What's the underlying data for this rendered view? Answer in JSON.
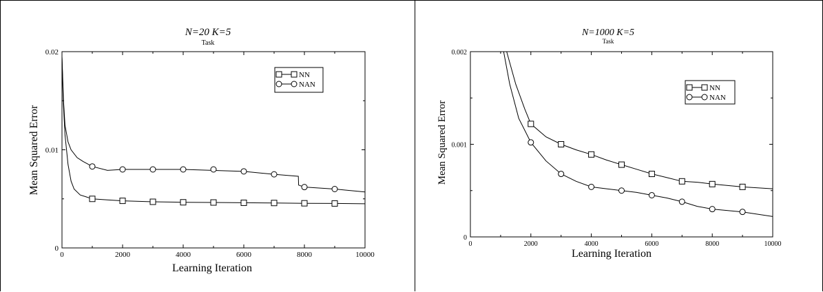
{
  "chart_data": [
    {
      "type": "line",
      "title": "N=20 K=5",
      "subtitle": "Task",
      "xlabel": "Learning Iteration",
      "ylabel": "Mean Squared Error",
      "xlim": [
        0,
        10000
      ],
      "ylim": [
        0,
        0.02
      ],
      "xticks": [
        0,
        2000,
        4000,
        6000,
        8000,
        10000
      ],
      "yticks": [
        0,
        0.01,
        0.02
      ],
      "xtick_labels": [
        "0",
        "2000",
        "4000",
        "6000",
        "8000",
        "10000"
      ],
      "ytick_labels": [
        "0",
        "0.01",
        "0.02"
      ],
      "grid": false,
      "legend_position": "top-right",
      "series": [
        {
          "name": "NN",
          "marker": "square",
          "x": [
            0,
            40,
            100,
            200,
            300,
            400,
            600,
            800,
            1000,
            1500,
            2000,
            3000,
            4000,
            5000,
            6000,
            7000,
            8000,
            9000,
            10000
          ],
          "y": [
            0.0195,
            0.015,
            0.0115,
            0.0085,
            0.0068,
            0.006,
            0.0054,
            0.0052,
            0.005,
            0.0049,
            0.0048,
            0.0047,
            0.00465,
            0.00463,
            0.0046,
            0.00458,
            0.00455,
            0.00453,
            0.0045
          ],
          "marker_x": [
            1000,
            2000,
            3000,
            4000,
            5000,
            6000,
            7000,
            8000,
            9000
          ],
          "marker_y": [
            0.005,
            0.0048,
            0.0047,
            0.00465,
            0.00463,
            0.0046,
            0.00458,
            0.00455,
            0.00453
          ]
        },
        {
          "name": "NAN",
          "marker": "circle",
          "x": [
            0,
            50,
            100,
            200,
            300,
            500,
            700,
            1000,
            1500,
            2000,
            4000,
            6000,
            7000,
            7800,
            7810,
            8000,
            9000,
            10000
          ],
          "y": [
            0.0195,
            0.015,
            0.0125,
            0.0108,
            0.01,
            0.0092,
            0.0088,
            0.0083,
            0.0079,
            0.008,
            0.008,
            0.0078,
            0.0075,
            0.0073,
            0.0064,
            0.0062,
            0.006,
            0.0057
          ],
          "marker_x": [
            1000,
            2000,
            3000,
            4000,
            5000,
            6000,
            7000,
            8000,
            9000
          ],
          "marker_y": [
            0.0083,
            0.008,
            0.008,
            0.008,
            0.008,
            0.0078,
            0.0075,
            0.0062,
            0.006
          ]
        }
      ]
    },
    {
      "type": "line",
      "title": "N=1000 K=5",
      "subtitle": "Task",
      "xlabel": "Learning Iteration",
      "ylabel": "Mean Squared Error",
      "xlim": [
        0,
        10000
      ],
      "ylim": [
        0,
        0.002
      ],
      "xticks": [
        0,
        2000,
        4000,
        6000,
        8000,
        10000
      ],
      "yticks": [
        0,
        0.001,
        0.002
      ],
      "xtick_labels": [
        "0",
        "2000",
        "4000",
        "6000",
        "8000",
        "10000"
      ],
      "ytick_labels": [
        "0",
        "0.001",
        "0.002"
      ],
      "grid": false,
      "legend_position": "top-right",
      "series": [
        {
          "name": "NN",
          "marker": "square",
          "x": [
            1200,
            1500,
            1800,
            2000,
            2500,
            3000,
            3500,
            4000,
            4500,
            5000,
            5500,
            6000,
            6500,
            7000,
            7500,
            8000,
            9000,
            10000
          ],
          "y": [
            0.002,
            0.00165,
            0.00138,
            0.00122,
            0.00108,
            0.001,
            0.00094,
            0.00089,
            0.00083,
            0.00078,
            0.00073,
            0.00068,
            0.00064,
            0.0006,
            0.00059,
            0.00057,
            0.00054,
            0.00052
          ],
          "marker_x": [
            2000,
            3000,
            4000,
            5000,
            6000,
            7000,
            8000,
            9000
          ],
          "marker_y": [
            0.00122,
            0.001,
            0.00089,
            0.00078,
            0.00068,
            0.0006,
            0.00057,
            0.00054
          ]
        },
        {
          "name": "NAN",
          "marker": "circle",
          "x": [
            1100,
            1300,
            1600,
            2000,
            2500,
            3000,
            3500,
            4000,
            4500,
            5000,
            5500,
            6000,
            6500,
            7000,
            7500,
            8000,
            9000,
            10000
          ],
          "y": [
            0.002,
            0.00165,
            0.00128,
            0.00102,
            0.00082,
            0.00068,
            0.0006,
            0.00054,
            0.00052,
            0.0005,
            0.00048,
            0.00045,
            0.00042,
            0.00038,
            0.00033,
            0.0003,
            0.00027,
            0.00022
          ],
          "marker_x": [
            2000,
            3000,
            4000,
            5000,
            6000,
            7000,
            8000,
            9000
          ],
          "marker_y": [
            0.00102,
            0.00068,
            0.00054,
            0.0005,
            0.00045,
            0.00038,
            0.0003,
            0.00027
          ]
        }
      ]
    }
  ]
}
